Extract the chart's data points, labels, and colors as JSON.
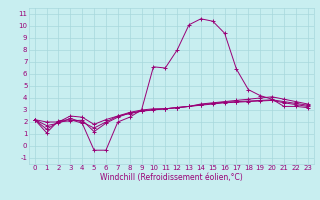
{
  "xlabel": "Windchill (Refroidissement éolien,°C)",
  "bg_color": "#c8eef0",
  "grid_color": "#a8d8dc",
  "line_color": "#990077",
  "xlim": [
    -0.5,
    23.5
  ],
  "ylim": [
    -1.5,
    11.5
  ],
  "xticks": [
    0,
    1,
    2,
    3,
    4,
    5,
    6,
    7,
    8,
    9,
    10,
    11,
    12,
    13,
    14,
    15,
    16,
    17,
    18,
    19,
    20,
    21,
    22,
    23
  ],
  "yticks": [
    -1,
    0,
    1,
    2,
    3,
    4,
    5,
    6,
    7,
    8,
    9,
    10,
    11
  ],
  "series": [
    [
      2.2,
      1.1,
      2.1,
      2.2,
      1.9,
      -0.35,
      -0.35,
      2.0,
      2.4,
      3.0,
      6.6,
      6.5,
      8.0,
      10.1,
      10.6,
      10.4,
      9.4,
      6.4,
      4.7,
      4.2,
      3.9,
      3.3,
      3.3,
      3.2
    ],
    [
      2.2,
      2.0,
      2.0,
      2.5,
      2.4,
      1.8,
      2.2,
      2.5,
      2.7,
      2.9,
      3.0,
      3.1,
      3.2,
      3.3,
      3.5,
      3.6,
      3.7,
      3.8,
      3.9,
      4.0,
      4.1,
      3.9,
      3.7,
      3.5
    ],
    [
      2.2,
      1.7,
      1.9,
      2.3,
      2.0,
      1.5,
      2.0,
      2.5,
      2.8,
      3.0,
      3.1,
      3.1,
      3.2,
      3.3,
      3.45,
      3.55,
      3.65,
      3.7,
      3.75,
      3.8,
      3.85,
      3.7,
      3.55,
      3.4
    ],
    [
      2.2,
      1.4,
      2.0,
      2.1,
      2.15,
      1.2,
      1.9,
      2.4,
      2.75,
      2.9,
      3.05,
      3.1,
      3.2,
      3.3,
      3.4,
      3.5,
      3.6,
      3.65,
      3.7,
      3.75,
      3.8,
      3.6,
      3.45,
      3.3
    ]
  ],
  "tick_fontsize": 5,
  "xlabel_fontsize": 5.5
}
